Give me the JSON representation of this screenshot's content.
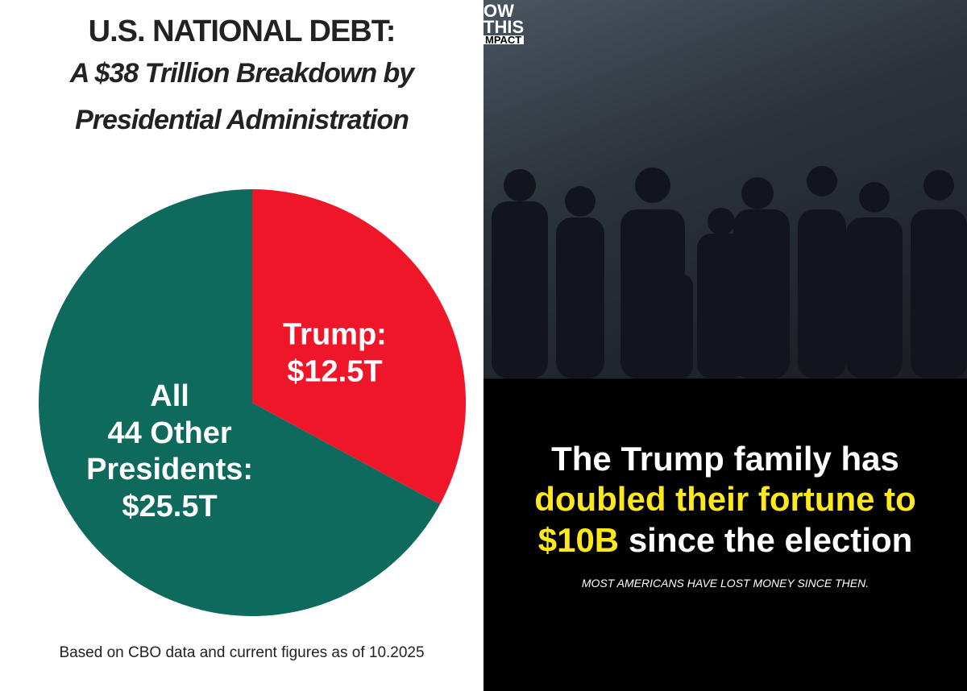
{
  "chart_data": {
    "type": "pie",
    "title": "U.S. NATIONAL DEBT:",
    "subtitle": [
      "A $38 Trillion Breakdown by",
      "Presidential Administration"
    ],
    "categories": [
      "Trump:",
      "All\n44 Other\nPresidents:"
    ],
    "values": [
      12.5,
      25.5
    ],
    "value_labels": [
      "$12.5T",
      "$25.5T"
    ],
    "colors": [
      "#f0162a",
      "#0d6a5d"
    ],
    "footnote": "Based on CBO data and current figures as of 10.2025"
  },
  "panel": {
    "logo": [
      "OW",
      "THIS",
      "MPACT"
    ],
    "headline": {
      "line1": "The Trump family has",
      "highlight1": "doubled their fortune to",
      "highlight2": "$10B",
      "rest": "since the election"
    },
    "caption": "MOST AMERICANS HAVE LOST MONEY SINCE THEN."
  }
}
